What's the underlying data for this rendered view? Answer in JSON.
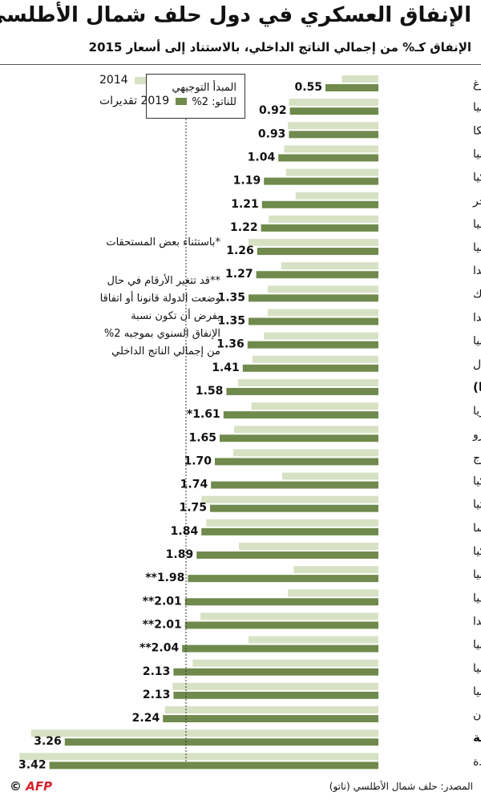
{
  "header": {
    "title": "الإنفاق العسكري في دول حلف شمال الأطلسي",
    "subtitle": "الإنفاق كـ% من إجمالي الناتج الداخلي، بالاستناد إلى أسعار 2015"
  },
  "legend": {
    "item_2014": "2014",
    "item_2019": "2019 تقديرات",
    "color_2014": "#d7e1c4",
    "color_2019": "#6f8a4c"
  },
  "guideline_box": {
    "line1": "المبدأ التوجيهي",
    "line2": "للناتو: 2%"
  },
  "notes": {
    "note1": "*باستثناء بعض المستحقات",
    "note2": [
      "**قد تتغير الأرقام في حال",
      "وضعت الدولة قانونا أو اتفاقا",
      "يفرض أن تكون نسبة",
      "الإنفاق السنوي بموجبه 2%",
      "من إجمالي الناتج الداخلي"
    ]
  },
  "footer": {
    "source": "المصدر: حلف شمال الأطلسي (ناتو)",
    "logo": "AFP",
    "copyright": "©"
  },
  "chart_data": {
    "type": "bar",
    "orientation": "horizontal",
    "title": "الإنفاق العسكري في دول حلف شمال الأطلسي",
    "subtitle": "الإنفاق كـ% من إجمالي الناتج الداخلي، بالاستناد إلى أسعار 2015",
    "unit": "%",
    "guideline_value": 2.0,
    "categories": [
      "لوكسمبورغ",
      "إسبانيا",
      "بلجيكا",
      "سلوفينيا",
      "تشيكيا",
      "المجر",
      "إيطاليا",
      "ألبانيا",
      "كندا",
      "الدنمارك",
      "هولندا",
      "ألمانيا",
      "البرتغال",
      "الناتو (أوروبا)",
      "بلغاريا",
      "مونتينيغرو",
      "النروج",
      "سلوفاكيا",
      "كرواتيا",
      "فرنسا",
      "تركيا",
      "ليتوانيا",
      "لاتفيا",
      "بولندا",
      "رومانيا",
      "إستونيا",
      "بريطانيا",
      "اليونان",
      "أميركا الشمالية",
      "الولايات المتحدة"
    ],
    "bold_categories": [
      "الناتو (أوروبا)",
      "أميركا الشمالية"
    ],
    "value_labels": [
      "0.55",
      "0.92",
      "0.93",
      "1.04",
      "1.19",
      "1.21",
      "1.22",
      "1.26",
      "1.27",
      "1.35",
      "1.35",
      "1.36",
      "1.41",
      "1.58",
      "*1.61",
      "1.65",
      "1.70",
      "1.74",
      "1.75",
      "1.84",
      "1.89",
      "**1.98",
      "**2.01",
      "**2.01",
      "**2.04",
      "2.13",
      "2.13",
      "2.24",
      "3.26",
      "3.42"
    ],
    "series": [
      {
        "name": "2014",
        "values": [
          0.38,
          0.93,
          0.94,
          0.98,
          0.96,
          0.86,
          1.14,
          1.35,
          1.01,
          1.15,
          1.15,
          1.19,
          1.31,
          1.46,
          1.32,
          1.5,
          1.51,
          1.0,
          1.84,
          1.79,
          1.45,
          0.88,
          0.94,
          1.85,
          1.35,
          1.93,
          2.14,
          2.22,
          3.61,
          3.73
        ]
      },
      {
        "name": "2019 تقديرات",
        "values": [
          0.55,
          0.92,
          0.93,
          1.04,
          1.19,
          1.21,
          1.22,
          1.26,
          1.27,
          1.35,
          1.35,
          1.36,
          1.41,
          1.58,
          1.61,
          1.65,
          1.7,
          1.74,
          1.75,
          1.84,
          1.89,
          1.98,
          2.01,
          2.01,
          2.04,
          2.13,
          2.13,
          2.24,
          3.26,
          3.42
        ]
      }
    ],
    "xlim": [
      0,
      3.8
    ],
    "grid": false,
    "legend_position": "top-left"
  }
}
